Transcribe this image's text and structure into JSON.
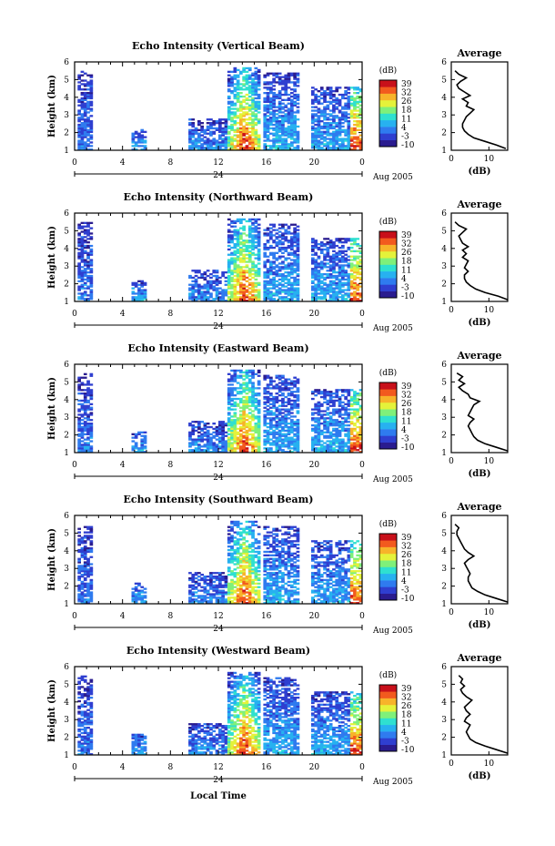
{
  "figure": {
    "x_axis_title": "Local Time",
    "date_label": "Aug 2005",
    "day_label": "24",
    "colorbar_unit": "(dB)",
    "colorbar_ticks": [
      "39",
      "32",
      "26",
      "18",
      "11",
      "4",
      "-3",
      "-10"
    ],
    "colormap": [
      "#2a1c8f",
      "#2f3fd0",
      "#2f7bef",
      "#27b1f0",
      "#2fe0d0",
      "#7ff07a",
      "#e4f23a",
      "#f7b32a",
      "#f25a1e",
      "#c8101a"
    ]
  },
  "chart_data": [
    {
      "type": "heatmap",
      "title": "Echo Intensity (Vertical Beam)",
      "ylabel": "Height (km)",
      "x_ticks": [
        "0",
        "4",
        "8",
        "12",
        "16",
        "20",
        "0"
      ],
      "xlim": [
        0,
        24
      ],
      "ylim": [
        1,
        6
      ],
      "y_ticks": [
        "1",
        "2",
        "3",
        "4",
        "5",
        "6"
      ],
      "clim": [
        -10,
        39
      ],
      "profile": {
        "title": "Average",
        "xlabel": "(dB)",
        "xlim": [
          0,
          15
        ],
        "ylim": [
          1,
          6
        ],
        "x_ticks": [
          "0",
          "10"
        ],
        "y_ticks": [
          "1",
          "2",
          "3",
          "4",
          "5",
          "6"
        ],
        "x": [
          14.5,
          12,
          9,
          6,
          4.5,
          3.5,
          3,
          3,
          3.5,
          4,
          5,
          6,
          4,
          4.5,
          3,
          5,
          3.5,
          2,
          1.5,
          2.5,
          4,
          2,
          1
        ],
        "y": [
          1.1,
          1.3,
          1.5,
          1.7,
          1.9,
          2.1,
          2.3,
          2.5,
          2.7,
          2.9,
          3.1,
          3.3,
          3.5,
          3.7,
          3.9,
          4.1,
          4.3,
          4.5,
          4.7,
          4.9,
          5.1,
          5.3,
          5.5
        ]
      }
    },
    {
      "type": "heatmap",
      "title": "Echo Intensity (Northward Beam)",
      "ylabel": "Height (km)",
      "x_ticks": [
        "0",
        "4",
        "8",
        "12",
        "16",
        "20",
        "0"
      ],
      "xlim": [
        0,
        24
      ],
      "ylim": [
        1,
        6
      ],
      "y_ticks": [
        "1",
        "2",
        "3",
        "4",
        "5",
        "6"
      ],
      "clim": [
        -10,
        39
      ],
      "profile": {
        "title": "Average",
        "xlabel": "(dB)",
        "xlim": [
          0,
          15
        ],
        "ylim": [
          1,
          6
        ],
        "x_ticks": [
          "0",
          "10"
        ],
        "y_ticks": [
          "1",
          "2",
          "3",
          "4",
          "5",
          "6"
        ],
        "x": [
          15,
          12.5,
          9,
          6.5,
          5,
          4,
          3.5,
          3.5,
          4.5,
          3.5,
          4,
          4.5,
          3,
          4,
          3,
          4.5,
          3,
          2.5,
          2,
          3,
          4,
          2,
          1
        ],
        "y": [
          1.1,
          1.3,
          1.5,
          1.7,
          1.9,
          2.1,
          2.3,
          2.5,
          2.7,
          2.9,
          3.1,
          3.3,
          3.5,
          3.7,
          3.9,
          4.1,
          4.3,
          4.5,
          4.7,
          4.9,
          5.1,
          5.3,
          5.5
        ]
      }
    },
    {
      "type": "heatmap",
      "title": "Echo Intensity (Eastward Beam)",
      "ylabel": "Height (km)",
      "x_ticks": [
        "0",
        "4",
        "8",
        "12",
        "16",
        "20",
        "0"
      ],
      "xlim": [
        0,
        24
      ],
      "ylim": [
        1,
        6
      ],
      "y_ticks": [
        "1",
        "2",
        "3",
        "4",
        "5",
        "6"
      ],
      "clim": [
        -10,
        39
      ],
      "profile": {
        "title": "Average",
        "xlabel": "(dB)",
        "xlim": [
          0,
          15
        ],
        "ylim": [
          1,
          6
        ],
        "x_ticks": [
          "0",
          "10"
        ],
        "y_ticks": [
          "1",
          "2",
          "3",
          "4",
          "5",
          "6"
        ],
        "x": [
          15,
          12,
          9,
          7,
          6,
          5.5,
          5,
          4.5,
          5,
          6,
          4.5,
          5,
          5.5,
          6,
          7.5,
          5,
          4.5,
          3,
          2,
          3.5,
          2,
          3,
          1.5
        ],
        "y": [
          1.1,
          1.3,
          1.5,
          1.7,
          1.9,
          2.1,
          2.3,
          2.5,
          2.7,
          2.9,
          3.1,
          3.3,
          3.5,
          3.7,
          3.9,
          4.1,
          4.3,
          4.5,
          4.7,
          4.9,
          5.1,
          5.3,
          5.5
        ]
      }
    },
    {
      "type": "heatmap",
      "title": "Echo Intensity (Southward Beam)",
      "ylabel": "Height (km)",
      "x_ticks": [
        "0",
        "4",
        "8",
        "12",
        "16",
        "20",
        "0"
      ],
      "xlim": [
        0,
        24
      ],
      "ylim": [
        1,
        6
      ],
      "y_ticks": [
        "1",
        "2",
        "3",
        "4",
        "5",
        "6"
      ],
      "clim": [
        -10,
        39
      ],
      "profile": {
        "title": "Average",
        "xlabel": "(dB)",
        "xlim": [
          0,
          15
        ],
        "ylim": [
          1,
          6
        ],
        "x_ticks": [
          "0",
          "10"
        ],
        "y_ticks": [
          "1",
          "2",
          "3",
          "4",
          "5",
          "6"
        ],
        "x": [
          15,
          12,
          9,
          7,
          5.5,
          5,
          4.5,
          4.5,
          5,
          4.5,
          4,
          3.5,
          4.5,
          6,
          4.5,
          3.5,
          3,
          2.5,
          2,
          1.5,
          1.5,
          2,
          1
        ],
        "y": [
          1.1,
          1.3,
          1.5,
          1.7,
          1.9,
          2.1,
          2.3,
          2.5,
          2.7,
          2.9,
          3.1,
          3.3,
          3.5,
          3.7,
          3.9,
          4.1,
          4.3,
          4.5,
          4.7,
          4.9,
          5.1,
          5.3,
          5.5
        ]
      }
    },
    {
      "type": "heatmap",
      "title": "Echo Intensity (Westward Beam)",
      "ylabel": "Height (km)",
      "x_ticks": [
        "0",
        "4",
        "8",
        "12",
        "16",
        "20",
        "0"
      ],
      "xlim": [
        0,
        24
      ],
      "ylim": [
        1,
        6
      ],
      "y_ticks": [
        "1",
        "2",
        "3",
        "4",
        "5",
        "6"
      ],
      "clim": [
        -10,
        39
      ],
      "profile": {
        "title": "Average",
        "xlabel": "(dB)",
        "xlim": [
          0,
          15
        ],
        "ylim": [
          1,
          6
        ],
        "x_ticks": [
          "0",
          "10"
        ],
        "y_ticks": [
          "1",
          "2",
          "3",
          "4",
          "5",
          "6"
        ],
        "x": [
          15,
          12,
          9,
          6.5,
          5,
          4.5,
          4,
          4.5,
          5,
          3.5,
          4,
          5,
          4,
          3.5,
          4.5,
          5.5,
          4,
          3,
          2.5,
          3.5,
          2.5,
          3,
          2
        ],
        "y": [
          1.1,
          1.3,
          1.5,
          1.7,
          1.9,
          2.1,
          2.3,
          2.5,
          2.7,
          2.9,
          3.1,
          3.3,
          3.5,
          3.7,
          3.9,
          4.1,
          4.3,
          4.5,
          4.7,
          4.9,
          5.1,
          5.3,
          5.5
        ]
      }
    }
  ]
}
